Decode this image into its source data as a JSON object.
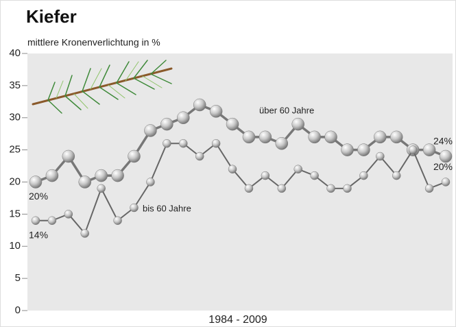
{
  "chart_data": {
    "type": "line",
    "title": "Kiefer",
    "subtitle": "mittlere Kronenverlichtung in %",
    "x_label": "1984 - 2009",
    "ylim": [
      0,
      40
    ],
    "yticks": [
      0,
      5,
      10,
      15,
      20,
      25,
      30,
      35,
      40
    ],
    "series": [
      {
        "name": "über 60 Jahre",
        "color": "#777777",
        "values": [
          20,
          21,
          24,
          20,
          21,
          21,
          24,
          28,
          29,
          30,
          32,
          31,
          29,
          27,
          27,
          26,
          29,
          27,
          27,
          25,
          25,
          27,
          27,
          25,
          25,
          24
        ],
        "value_labels": [
          "20%",
          null,
          null,
          null,
          null,
          null,
          null,
          null,
          null,
          null,
          null,
          null,
          null,
          null,
          null,
          null,
          null,
          null,
          null,
          null,
          null,
          null,
          null,
          null,
          null,
          "24%"
        ]
      },
      {
        "name": "bis 60 Jahre",
        "color": "#666666",
        "values": [
          14,
          14,
          15,
          12,
          19,
          14,
          16,
          20,
          26,
          26,
          24,
          26,
          22,
          19,
          21,
          19,
          22,
          21,
          19,
          19,
          21,
          24,
          21,
          25,
          19,
          20
        ],
        "value_labels": [
          "14%",
          null,
          null,
          null,
          null,
          null,
          null,
          null,
          null,
          null,
          null,
          null,
          null,
          null,
          null,
          null,
          null,
          null,
          null,
          null,
          null,
          null,
          null,
          null,
          null,
          "20%"
        ]
      }
    ]
  }
}
